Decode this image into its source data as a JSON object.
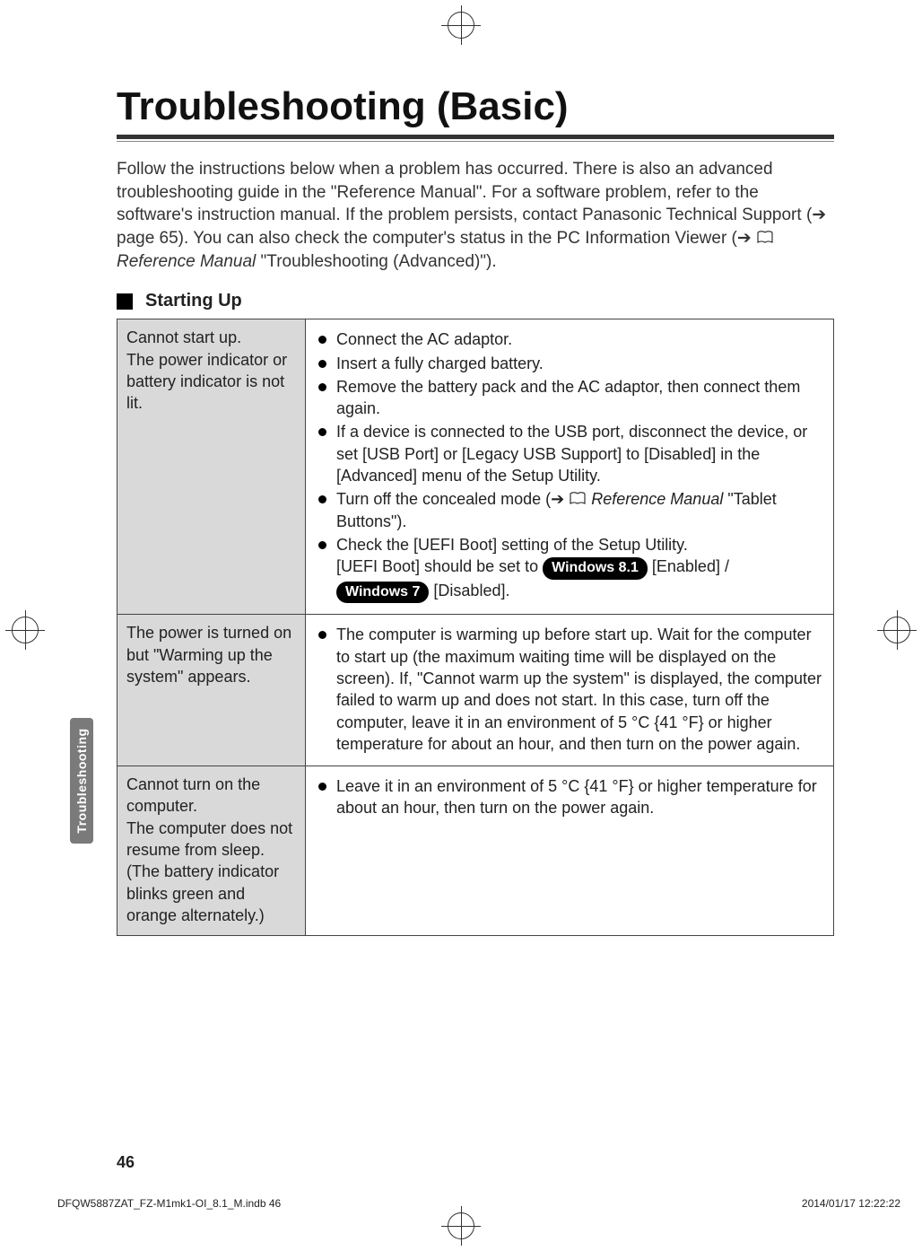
{
  "title": "Troubleshooting (Basic)",
  "intro_html": "Follow the instructions below when a problem has occurred. There is also an advanced troubleshooting guide in the \"Reference Manual\". For a software problem, refer to the software's instruction manual. If the problem persists, contact Panasonic Technical Support (➔ page 65). You can also check the computer's status in the PC Information Viewer (➔ <svg class='book-icon' viewBox='0 0 24 20'><path d='M2 3 C2 2 4 1 7 1 C10 1 12 2 12 3 C12 2 14 1 17 1 C20 1 22 2 22 3 L22 17 C22 16 20 15 17 15 C14 15 12 16 12 17 C12 16 10 15 7 15 C4 15 2 16 2 17 Z' fill='none' stroke='#222' stroke-width='1.4'/></svg> <i>Reference Manual</i> \"Troubleshooting (Advanced)\").",
  "section_title": "Starting Up",
  "side_tab": "Troubleshooting",
  "page_number": "46",
  "footer_left": "DFQW5887ZAT_FZ-M1mk1-OI_8.1_M.indb   46",
  "footer_right": "2014/01/17   12:22:22",
  "rows": [
    {
      "left": "Cannot start up.\nThe power indicator or battery indicator is not lit.",
      "right_items": [
        "Connect the AC adaptor.",
        "Insert a fully charged battery.",
        "Remove the battery pack and the AC adaptor, then connect them again.",
        "If a device is connected to the USB port, disconnect the device, or set [USB Port] or [Legacy USB Support] to [Disabled] in the [Advanced] menu of the Setup Utility.",
        "Turn off the concealed mode (➔ <svg class='book-icon' viewBox='0 0 24 20'><path d='M2 3 C2 2 4 1 7 1 C10 1 12 2 12 3 C12 2 14 1 17 1 C20 1 22 2 22 3 L22 17 C22 16 20 15 17 15 C14 15 12 16 12 17 C12 16 10 15 7 15 C4 15 2 16 2 17 Z' fill='none' stroke='#222' stroke-width='1.4'/></svg> <i>Reference Manual</i> \"Tablet Buttons\").",
        "Check the [UEFI Boot] setting of the Setup Utility.<br>[UEFI Boot] should be set to <span class='pill'>Windows 8.1</span> [Enabled] / <span class='pill'>Windows 7</span> [Disabled]."
      ]
    },
    {
      "left": "The power is turned on but \"Warming up the system\" appears.",
      "right_items": [
        "The computer is warming up before start up. Wait for the computer to start up (the maximum waiting time will be displayed on the screen). If, \"Cannot warm up the system\" is displayed, the computer failed to warm up and does not start. In this case, turn off the computer, leave it in an environment of 5 °C {41 °F} or higher temperature for about an hour, and then turn on the power again."
      ]
    },
    {
      "left": "Cannot turn on the computer.\nThe computer does not resume from sleep.\n(The battery indicator blinks green and orange alternately.)",
      "right_items": [
        "Leave it in an environment of 5 °C {41 °F} or higher temperature for about an hour, then turn on the power again."
      ]
    }
  ]
}
